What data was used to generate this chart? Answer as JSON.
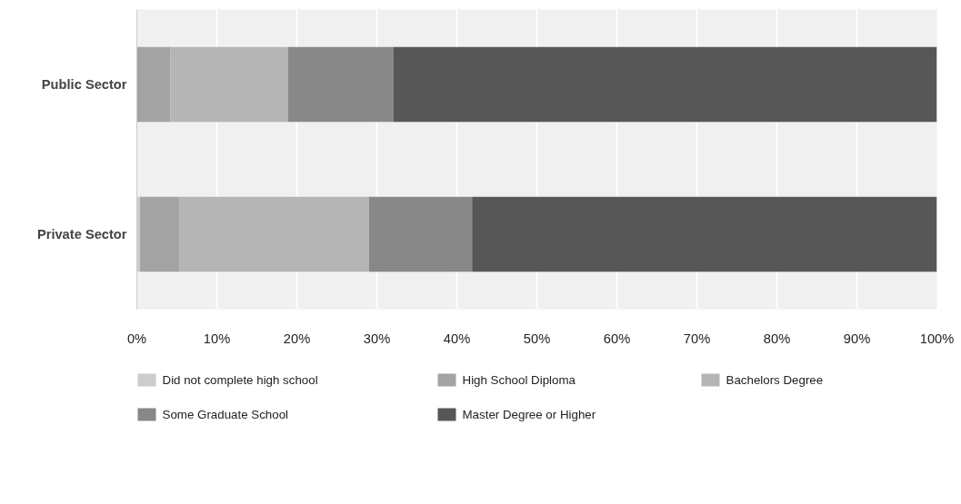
{
  "chart_data": {
    "type": "bar",
    "orientation": "horizontal",
    "stacked": true,
    "categories": [
      "Public Sector",
      "Private Sector"
    ],
    "series": [
      {
        "name": "Did not complete high school",
        "color": "#cccccc",
        "values": [
          0,
          0.4
        ]
      },
      {
        "name": "High School Diploma",
        "color": "#a3a3a3",
        "values": [
          4.2,
          4.9
        ]
      },
      {
        "name": "Bachelors Degree",
        "color": "#b5b5b5",
        "values": [
          14.7,
          23.7
        ]
      },
      {
        "name": "Some Graduate School",
        "color": "#888888",
        "values": [
          13.2,
          12.9
        ]
      },
      {
        "name": "Master Degree or Higher",
        "color": "#575757",
        "values": [
          67.9,
          58.1
        ]
      }
    ],
    "xlim": [
      0,
      100
    ],
    "xticks": [
      {
        "value": 0,
        "label": "0%"
      },
      {
        "value": 10,
        "label": "10%"
      },
      {
        "value": 20,
        "label": "20%"
      },
      {
        "value": 30,
        "label": "30%"
      },
      {
        "value": 40,
        "label": "40%"
      },
      {
        "value": 50,
        "label": "50%"
      },
      {
        "value": 60,
        "label": "60%"
      },
      {
        "value": 70,
        "label": "70%"
      },
      {
        "value": 80,
        "label": "80%"
      },
      {
        "value": 90,
        "label": "90%"
      },
      {
        "value": 100,
        "label": "100%"
      }
    ],
    "grid": "x",
    "legend": "bottom"
  }
}
